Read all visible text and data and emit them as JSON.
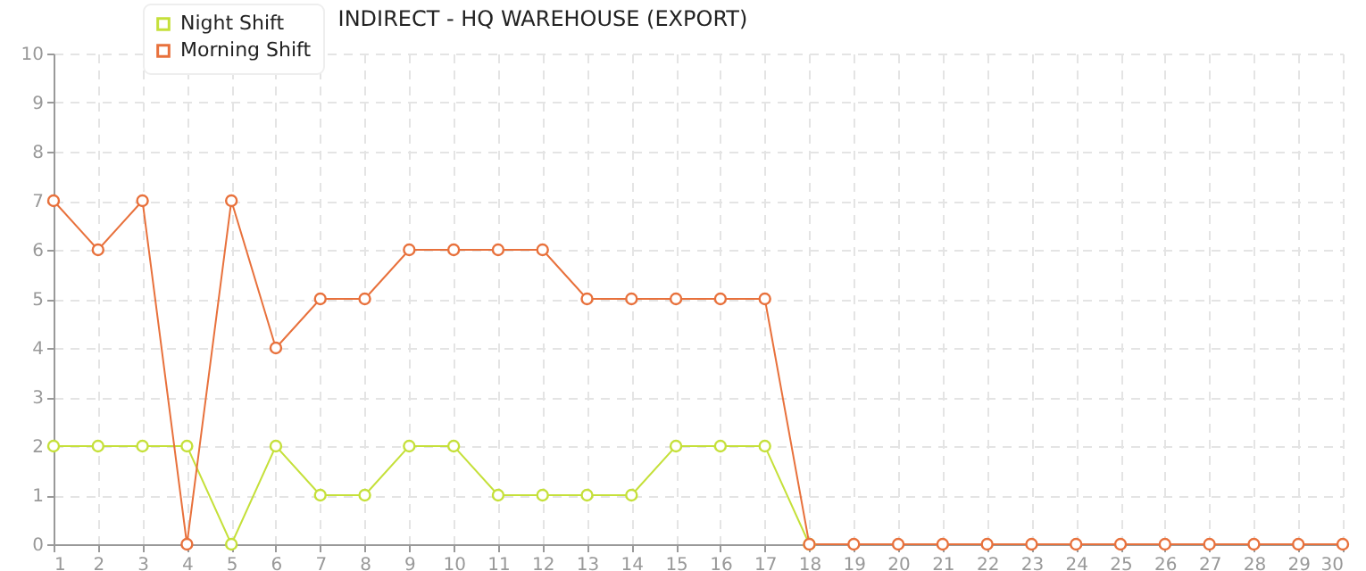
{
  "chart_data": {
    "type": "line",
    "title": "INDIRECT - HQ WAREHOUSE (EXPORT)",
    "x": [
      1,
      2,
      3,
      4,
      5,
      6,
      7,
      8,
      9,
      10,
      11,
      12,
      13,
      14,
      15,
      16,
      17,
      18,
      19,
      20,
      21,
      22,
      23,
      24,
      25,
      26,
      27,
      28,
      29,
      30
    ],
    "series": [
      {
        "name": "Night Shift",
        "color": "#c5e03a",
        "values": [
          2,
          2,
          2,
          2,
          0,
          2,
          1,
          1,
          2,
          2,
          1,
          1,
          1,
          1,
          2,
          2,
          2,
          0,
          null,
          null,
          null,
          null,
          null,
          null,
          null,
          null,
          null,
          null,
          null,
          null
        ]
      },
      {
        "name": "Morning Shift",
        "color": "#e8713c",
        "values": [
          7,
          6,
          7,
          0,
          7,
          4,
          5,
          5,
          6,
          6,
          6,
          6,
          5,
          5,
          5,
          5,
          5,
          0,
          0,
          0,
          0,
          0,
          0,
          0,
          0,
          0,
          0,
          0,
          0,
          0
        ]
      }
    ],
    "xlim": [
      1,
      30
    ],
    "xticks": [
      1,
      2,
      3,
      4,
      5,
      6,
      7,
      8,
      9,
      10,
      11,
      12,
      13,
      14,
      15,
      16,
      17,
      18,
      19,
      20,
      21,
      22,
      23,
      24,
      25,
      26,
      27,
      28,
      29,
      30
    ],
    "ylim": [
      0,
      10
    ],
    "yticks": [
      0,
      1,
      2,
      3,
      4,
      5,
      6,
      7,
      8,
      9,
      10
    ],
    "grid": true,
    "legend": "top left",
    "marker": "circle",
    "line_style": "solid"
  }
}
